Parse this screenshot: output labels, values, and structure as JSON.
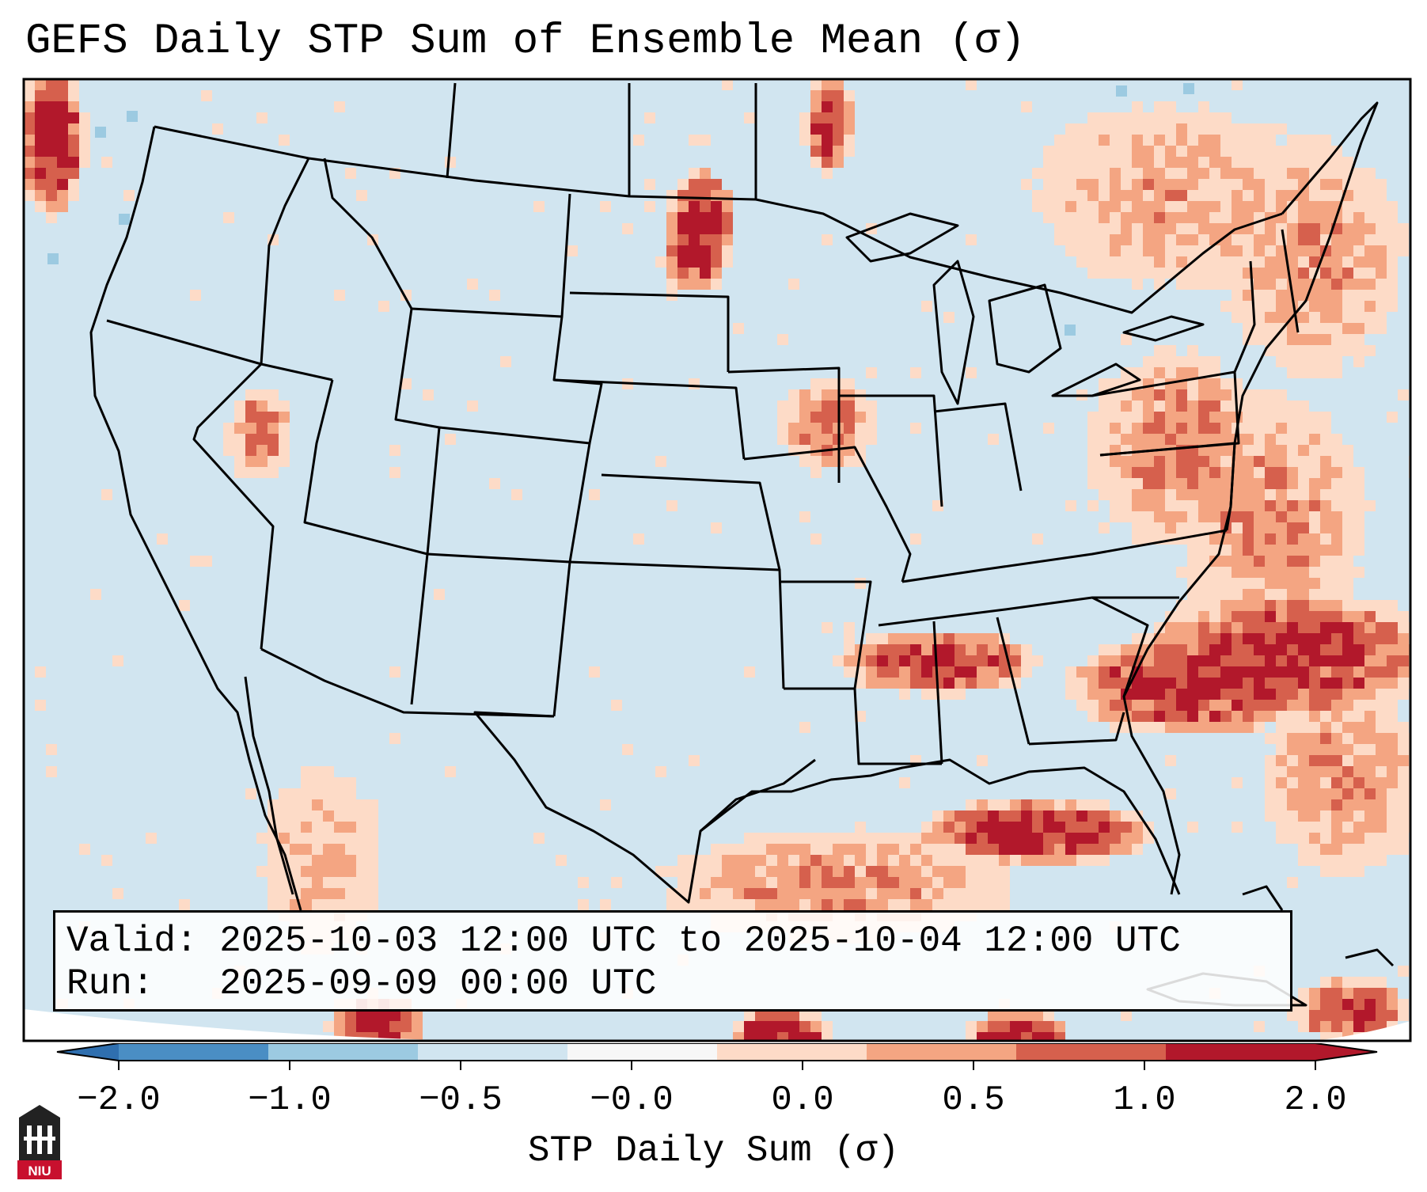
{
  "title": "GEFS Daily STP Sum of Ensemble Mean (σ)",
  "info": {
    "valid": "Valid: 2025-10-03 12:00 UTC to 2025-10-04 12:00 UTC",
    "run": "Run:   2025-09-09 00:00 UTC"
  },
  "colorbar": {
    "label": "STP Daily Sum (σ)",
    "ticks": [
      "−2.0",
      "−1.0",
      "−0.5",
      "−0.0",
      "0.0",
      "0.5",
      "1.0",
      "2.0"
    ],
    "colors": [
      "#4a8ec4",
      "#9ccae1",
      "#d1e5f0",
      "#f7f7f7",
      "#fddbc7",
      "#f4a582",
      "#d6604d",
      "#b2182b"
    ],
    "extend_low_color": "#2f6faf",
    "extend_high_color": "#b2182b"
  },
  "map": {
    "background_color": "#d1e5f0",
    "field": "STP daily sum anomaly (σ), GEFS ensemble mean"
  },
  "logo": {
    "text": "NIU"
  }
}
